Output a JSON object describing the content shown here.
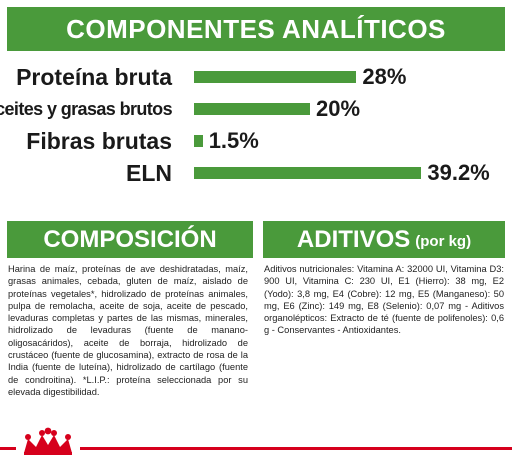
{
  "analiticos": {
    "title": "COMPONENTES ANALÍTICOS",
    "items": [
      {
        "label": "Proteína bruta",
        "value": "28%",
        "percent": 28
      },
      {
        "label": "Aceites y grasas brutos",
        "value": "20%",
        "percent": 20
      },
      {
        "label": "Fibras brutas",
        "value": "1.5%",
        "percent": 1.5
      },
      {
        "label": "ELN",
        "value": "39.2%",
        "percent": 39.2
      }
    ]
  },
  "composicion": {
    "title": "COMPOSICIÓN",
    "text": "Harina de maíz, proteínas de ave deshidratadas, maíz, grasas animales, cebada, gluten de maíz, aislado de proteínas vegetales*, hidrolizado de proteínas animales, pulpa de remolacha, aceite de soja, aceite de pescado, levaduras completas y partes de las mismas, minerales, hidrolizado de levaduras (fuente de manano-oligosacáridos), aceite de borraja, hidrolizado de crustáceo (fuente de glucosamina), extracto de rosa de la India (fuente de luteína), hidrolizado de cartílago (fuente de condroitina). *L.I.P.: proteína seleccionada por su elevada digestibilidad."
  },
  "aditivos": {
    "title": "ADITIVOS",
    "title_small": "(por kg)",
    "text": "Aditivos nutricionales: Vitamina A: 32000 UI, Vitamina D3: 900 UI, Vitamina C: 230 UI, E1 (Hierro): 38 mg, E2 (Yodo): 3,8 mg, E4 (Cobre): 12 mg, E5 (Manganeso): 50 mg, E6 (Zinc): 149 mg, E8 (Selenio): 0,07 mg - Aditivos organolépticos: Extracto de té (fuente de polifenoles): 0,6 g - Conservantes - Antioxidantes."
  },
  "colors": {
    "green": "#4a9a3b",
    "red": "#d6001c"
  },
  "footer": {
    "logo_icon": "royal-canin-crown-icon"
  }
}
